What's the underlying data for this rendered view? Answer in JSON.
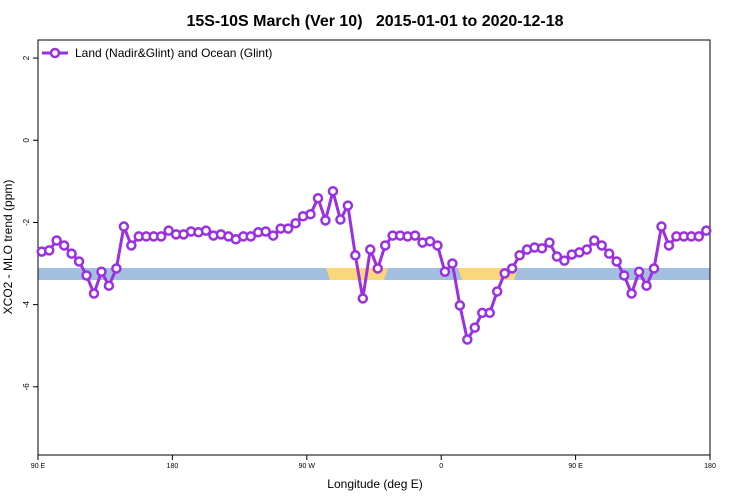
{
  "chart_data": {
    "type": "line",
    "title": "15S-10S March (Ver 10)   2015-01-01 to 2020-12-18",
    "x_label": "Longitude (deg E)",
    "y_label": "XCO2 - MLO trend (ppm)",
    "xlim": [
      90,
      540
    ],
    "ylim": [
      -7.66,
      2.44
    ],
    "xticks": [
      {
        "value": 90,
        "label": "90 E"
      },
      {
        "value": 180,
        "label": "180"
      },
      {
        "value": 270,
        "label": "90 W"
      },
      {
        "value": 360,
        "label": "0"
      },
      {
        "value": 450,
        "label": "90 E"
      },
      {
        "value": 540,
        "label": "180"
      }
    ],
    "yticks": [
      2,
      0,
      -2,
      -4,
      -6
    ],
    "legend_position": "top-left",
    "x": [
      92.5,
      97.5,
      102.5,
      107.5,
      112.5,
      117.5,
      122.5,
      127.5,
      132.5,
      137.5,
      142.5,
      147.5,
      152.5,
      157.5,
      162.5,
      167.5,
      172.5,
      177.5,
      182.5,
      187.5,
      192.5,
      197.5,
      202.5,
      207.5,
      212.5,
      217.5,
      222.5,
      227.5,
      232.5,
      237.5,
      242.5,
      247.5,
      252.5,
      257.5,
      262.5,
      267.5,
      272.5,
      277.5,
      282.5,
      287.5,
      292.5,
      297.5,
      302.5,
      307.5,
      312.5,
      317.5,
      322.5,
      327.5,
      332.5,
      337.5,
      342.5,
      347.5,
      352.5,
      357.5,
      362.5,
      367.5,
      372.5,
      377.5,
      382.5,
      387.5,
      392.5,
      397.5,
      402.5,
      407.5,
      412.5,
      417.5,
      422.5,
      427.5,
      432.5,
      437.5,
      442.5,
      447.5,
      452.5,
      457.5,
      462.5,
      467.5,
      472.5,
      477.5,
      482.5,
      487.5,
      492.5,
      497.5,
      502.5,
      507.5,
      512.5,
      517.5,
      522.5,
      527.5,
      532.5,
      537.5
    ],
    "series": [
      {
        "name": "Land (Nadir&Glint) and Ocean (Glint)",
        "color": "#9b30e0",
        "values": [
          -2.71,
          -2.68,
          -2.44,
          -2.56,
          -2.76,
          -2.95,
          -3.29,
          -3.73,
          -3.2,
          -3.54,
          -3.12,
          -2.1,
          -2.56,
          -2.34,
          -2.34,
          -2.34,
          -2.34,
          -2.2,
          -2.29,
          -2.29,
          -2.22,
          -2.24,
          -2.2,
          -2.32,
          -2.29,
          -2.34,
          -2.41,
          -2.34,
          -2.34,
          -2.24,
          -2.22,
          -2.32,
          -2.15,
          -2.15,
          -2.02,
          -1.85,
          -1.8,
          -1.41,
          -1.95,
          -1.24,
          -1.93,
          -1.59,
          -2.8,
          -3.85,
          -2.66,
          -3.12,
          -2.56,
          -2.32,
          -2.32,
          -2.34,
          -2.32,
          -2.49,
          -2.46,
          -2.56,
          -3.2,
          -3.0,
          -4.02,
          -4.85,
          -4.56,
          -4.2,
          -4.2,
          -3.68,
          -3.24,
          -3.12,
          -2.8,
          -2.66,
          -2.61,
          -2.63,
          -2.49,
          -2.83,
          -2.93,
          -2.78,
          -2.73,
          -2.66,
          -2.44,
          -2.56,
          -2.76,
          -2.95,
          -3.29,
          -3.73,
          -3.2,
          -3.54,
          -3.12,
          -2.1,
          -2.56,
          -2.34,
          -2.34,
          -2.34,
          -2.34,
          -2.2
        ]
      }
    ]
  }
}
